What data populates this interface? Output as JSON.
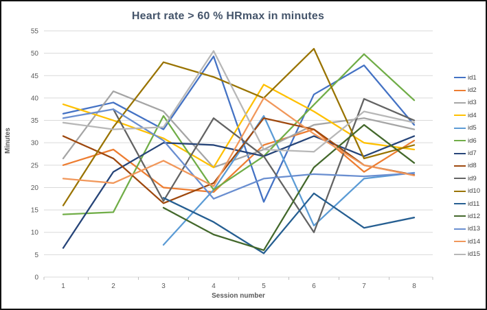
{
  "chart_title": "Heart rate > 60 % HRmax in minutes",
  "chart_data": {
    "type": "line",
    "title": "Heart rate > 60 % HRmax in minutes",
    "xlabel": "Session number",
    "ylabel": "Minutes",
    "categories": [
      "1",
      "2",
      "3",
      "4",
      "5",
      "6",
      "7",
      "8"
    ],
    "ylim": [
      0,
      55
    ],
    "ytick_step": 5,
    "yticks": [
      0,
      5,
      10,
      15,
      20,
      25,
      30,
      35,
      40,
      45,
      50,
      55
    ],
    "grid": true,
    "legend_position": "right",
    "gridline_color": "#D9D9D9",
    "axis_text_color": "#595959",
    "title_color": "#44546A",
    "series": [
      {
        "name": "id1",
        "color": "#4472C4",
        "values": [
          36.5,
          39,
          33,
          49.3,
          16.8,
          40.8,
          47.3,
          34
        ]
      },
      {
        "name": "id2",
        "color": "#ED7D31",
        "values": [
          25,
          28.5,
          20,
          19,
          29.5,
          33,
          23.5,
          30.5
        ]
      },
      {
        "name": "id3",
        "color": "#A5A5A5",
        "values": [
          26.5,
          41.5,
          37,
          24.5,
          28.5,
          34,
          35.5,
          33
        ]
      },
      {
        "name": "id4",
        "color": "#FFC000",
        "values": [
          38.6,
          35,
          31,
          24.5,
          43,
          37,
          30,
          28.5
        ]
      },
      {
        "name": "id5",
        "color": "#5B9BD5",
        "values": [
          null,
          null,
          7.2,
          19.5,
          36,
          11.5,
          22,
          23.3
        ]
      },
      {
        "name": "id6",
        "color": "#70AD47",
        "values": [
          14,
          14.5,
          36,
          19.5,
          27,
          38.5,
          49.8,
          39.5
        ]
      },
      {
        "name": "id7",
        "color": "#264478",
        "values": [
          6.5,
          23.5,
          30,
          29.5,
          27,
          31.5,
          27,
          31.5
        ]
      },
      {
        "name": "id8",
        "color": "#9E480E",
        "values": [
          31.5,
          26.5,
          16.5,
          21,
          35.5,
          33,
          25,
          22.8
        ]
      },
      {
        "name": "id9",
        "color": "#636363",
        "values": [
          null,
          37.5,
          17,
          35.5,
          27,
          10,
          39.8,
          35
        ]
      },
      {
        "name": "id10",
        "color": "#997300",
        "values": [
          16,
          33.5,
          48,
          44.7,
          40,
          51,
          26.5,
          29.5
        ]
      },
      {
        "name": "id11",
        "color": "#255E91",
        "values": [
          null,
          null,
          17.7,
          12.3,
          5.3,
          18.7,
          11,
          13.3
        ]
      },
      {
        "name": "id12",
        "color": "#43682B",
        "values": [
          null,
          null,
          15.5,
          9.5,
          6,
          24.5,
          34,
          25.5
        ]
      },
      {
        "name": "id13",
        "color": "#698ED0",
        "values": [
          35.5,
          37.5,
          30.5,
          17.5,
          22,
          23,
          22.5,
          23.2
        ]
      },
      {
        "name": "id14",
        "color": "#F1975A",
        "values": [
          22,
          21,
          26,
          20.3,
          40,
          32,
          25,
          22.7
        ]
      },
      {
        "name": "id15",
        "color": "#B7B7B7",
        "values": [
          34.5,
          33,
          33.5,
          50.5,
          28.5,
          28,
          37,
          34.5
        ]
      }
    ]
  }
}
